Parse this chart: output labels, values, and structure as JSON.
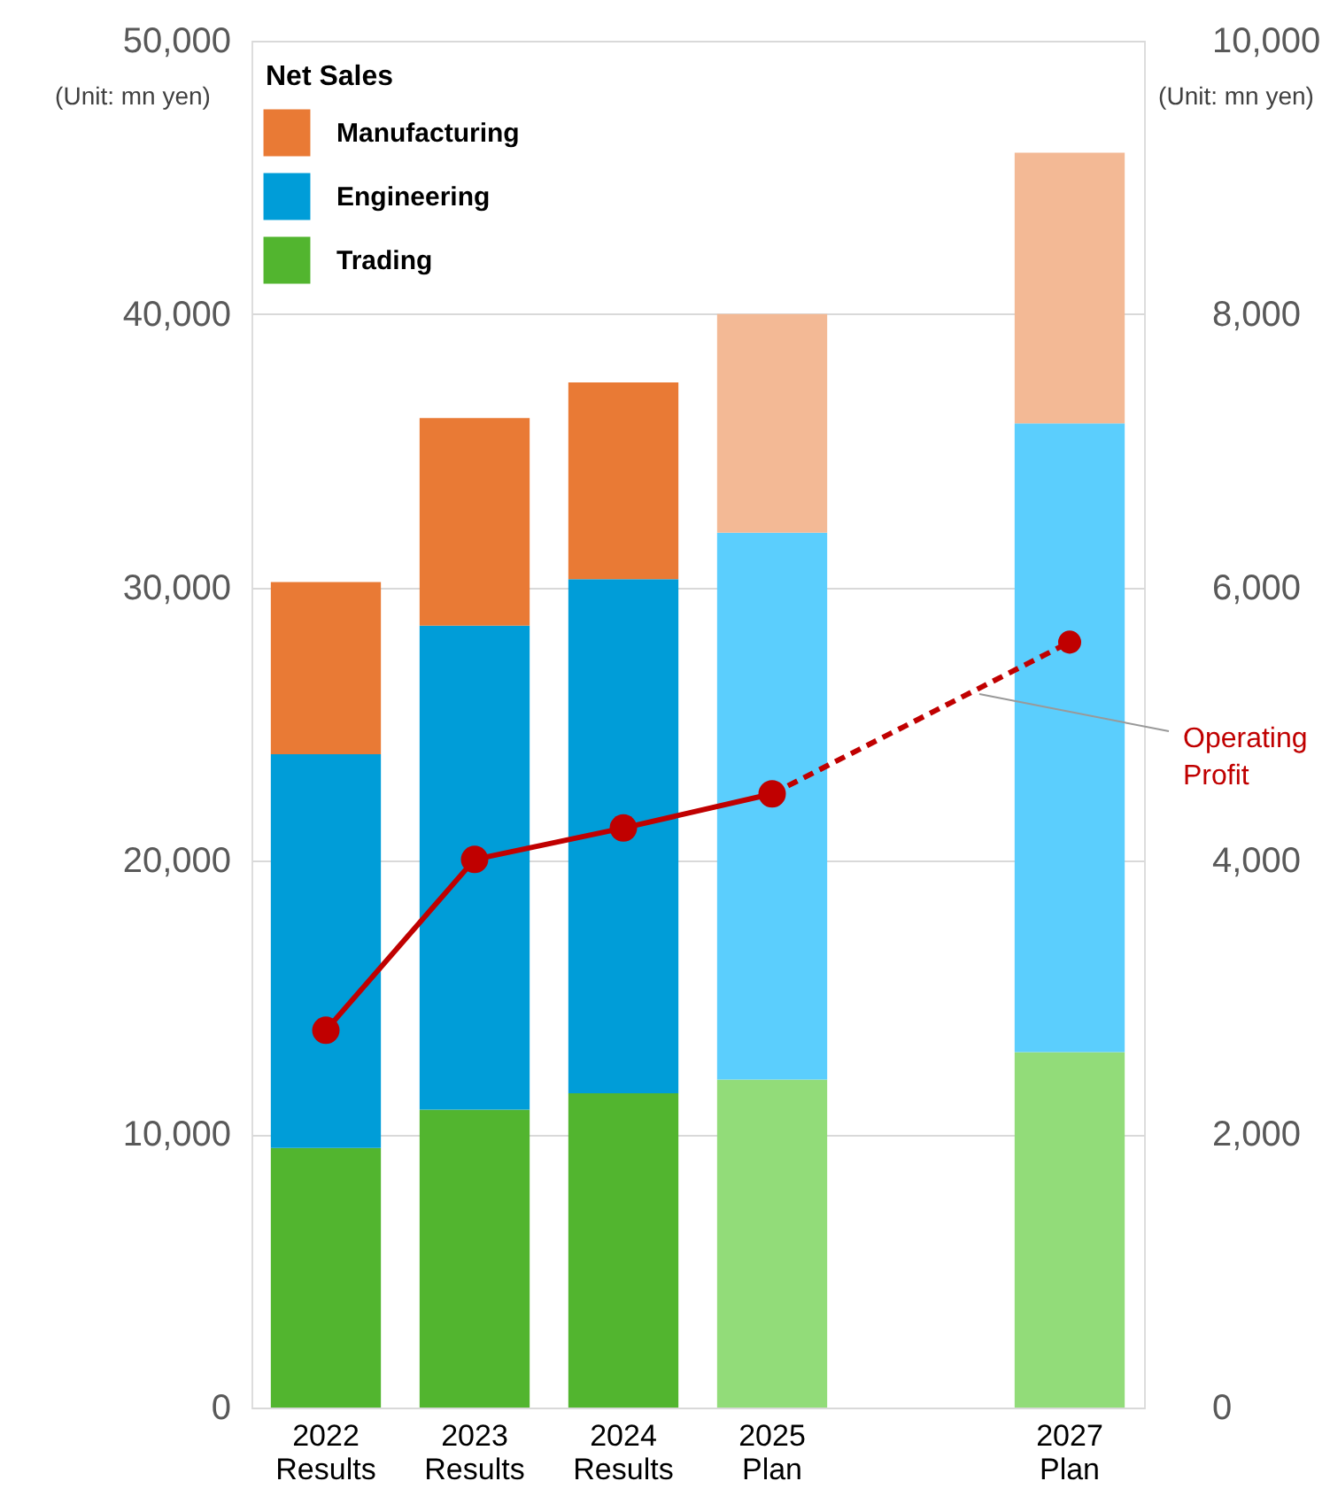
{
  "chart_data": {
    "type": "bar",
    "stacked": true,
    "legend_title": "Net Sales",
    "legend": "top left",
    "grid": "y",
    "marker": "circle",
    "categories": [
      "2022\nResults",
      "2023\nResults",
      "2024\nResults",
      "2025\nPlan",
      null,
      "2027\nPlan"
    ],
    "ylim": [
      0,
      50000
    ],
    "yticks": [
      {
        "value": 0,
        "label": "0"
      },
      {
        "value": 10000,
        "label": "10,000"
      },
      {
        "value": 20000,
        "label": "20,000"
      },
      {
        "value": 30000,
        "label": "30,000"
      },
      {
        "value": 40000,
        "label": "40,000"
      },
      {
        "value": 50000,
        "label": "50,000"
      }
    ],
    "y2lim": [
      0,
      10000
    ],
    "y2ticks": [
      {
        "value": 0,
        "label": "0"
      },
      {
        "value": 2000,
        "label": "2,000"
      },
      {
        "value": 4000,
        "label": "4,000"
      },
      {
        "value": 6000,
        "label": "6,000"
      },
      {
        "value": 8000,
        "label": "8,000"
      },
      {
        "value": 10000,
        "label": "10,000"
      }
    ],
    "annotations": [
      "(Unit: mn yen)",
      "(Unit: mn yen)"
    ],
    "series": [
      {
        "name": "Trading",
        "color": "#52b52f",
        "colors": [
          "#52b52f",
          "#52b52f",
          "#52b52f",
          "#92dc79",
          null,
          "#92dc79"
        ],
        "values": [
          9500,
          10900,
          11500,
          12000,
          null,
          13000
        ]
      },
      {
        "name": "Engineering",
        "color": "#009dd8",
        "colors": [
          "#009dd8",
          "#009dd8",
          "#009dd8",
          "#5bcefd",
          null,
          "#5bcefd"
        ],
        "values": [
          14400,
          17700,
          18800,
          20000,
          null,
          23000
        ]
      },
      {
        "name": "Manufacturing",
        "color": "#e97a35",
        "colors": [
          "#e97a35",
          "#e97a35",
          "#e97a35",
          "#f3b995",
          null,
          "#f3b995"
        ],
        "values": [
          6300,
          7600,
          7200,
          8000,
          null,
          9900
        ]
      },
      {
        "name": "Operating Profit",
        "type": "line",
        "axis": "y2",
        "color": "#c00000",
        "line_style": "solid",
        "values": [
          2760,
          4010,
          4240,
          4490,
          null,
          null
        ]
      },
      {
        "type": "line",
        "axis": "y2",
        "color": "#c00000",
        "line_style": "dashed",
        "values": [
          null,
          null,
          null,
          4490,
          null,
          5600
        ]
      }
    ]
  }
}
